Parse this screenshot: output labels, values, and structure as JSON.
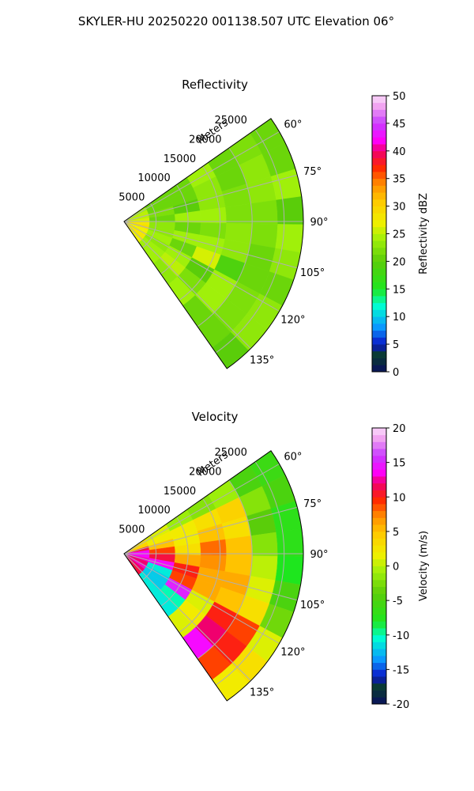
{
  "figure": {
    "suptitle": "SKYLER-HU  20250220  001138.507 UTC Elevation 06°"
  },
  "chart_data": [
    {
      "type": "heatmap",
      "projection": "polar-sector",
      "title": "Reflectivity",
      "range_axis_label": "Meters",
      "range_ticks": [
        "5000",
        "10000",
        "15000",
        "20000",
        "25000"
      ],
      "range_max": 28000,
      "azimuth_range": [
        55,
        145
      ],
      "azimuth_ticks": [
        "60°",
        "75°",
        "90°",
        "105°",
        "120°",
        "135°"
      ],
      "grid": true,
      "colorbar": {
        "label": "Reflectivity dBZ",
        "range": [
          0,
          50
        ],
        "ticks": [
          "0",
          "5",
          "10",
          "15",
          "20",
          "25",
          "30",
          "35",
          "40",
          "45",
          "50"
        ],
        "stops": [
          [
            0,
            "#0a1060"
          ],
          [
            0.06,
            "#0a3c2c"
          ],
          [
            0.1,
            "#0a14c8"
          ],
          [
            0.16,
            "#0a96ff"
          ],
          [
            0.24,
            "#00ffd2"
          ],
          [
            0.3,
            "#1ee61e"
          ],
          [
            0.4,
            "#5acd0a"
          ],
          [
            0.48,
            "#a0f00a"
          ],
          [
            0.54,
            "#f0f000"
          ],
          [
            0.62,
            "#ffc800"
          ],
          [
            0.68,
            "#ff8c00"
          ],
          [
            0.74,
            "#ff2800"
          ],
          [
            0.8,
            "#f0006e"
          ],
          [
            0.84,
            "#ff00ff"
          ],
          [
            0.9,
            "#c83cff"
          ],
          [
            0.96,
            "#f0a0f0"
          ],
          [
            1,
            "#fadcfa"
          ]
        ]
      },
      "values_dbz": [
        [
          24,
          25,
          25,
          26,
          28,
          29,
          27,
          28,
          28,
          27
        ],
        [
          21,
          21,
          22,
          21,
          23,
          23,
          24,
          23,
          24,
          24
        ],
        [
          21,
          21,
          20,
          24,
          21,
          24,
          21,
          24,
          25,
          23
        ],
        [
          24,
          23,
          23,
          24,
          22,
          24,
          26,
          20,
          22,
          24
        ],
        [
          21,
          21,
          22,
          22,
          23,
          23,
          19,
          24,
          24,
          21
        ],
        [
          22,
          23,
          23,
          22,
          22,
          21,
          21,
          22,
          22,
          21
        ],
        [
          21,
          21,
          24,
          20,
          24,
          23,
          21,
          23,
          23,
          20
        ]
      ]
    },
    {
      "type": "heatmap",
      "projection": "polar-sector",
      "title": "Velocity",
      "range_axis_label": "Meters",
      "range_ticks": [
        "5000",
        "10000",
        "15000",
        "20000",
        "25000"
      ],
      "range_max": 28000,
      "azimuth_range": [
        55,
        145
      ],
      "azimuth_ticks": [
        "60°",
        "75°",
        "90°",
        "105°",
        "120°",
        "135°"
      ],
      "grid": true,
      "colorbar": {
        "label": "Velocity (m/s)",
        "range": [
          -20,
          20
        ],
        "ticks": [
          "-20",
          "-15",
          "-10",
          "-5",
          "0",
          "5",
          "10",
          "15",
          "20"
        ],
        "stops": [
          [
            0,
            "#0a1060"
          ],
          [
            0.06,
            "#0a3c2c"
          ],
          [
            0.1,
            "#0a14c8"
          ],
          [
            0.16,
            "#0a96ff"
          ],
          [
            0.24,
            "#00ffd2"
          ],
          [
            0.3,
            "#1ee61e"
          ],
          [
            0.4,
            "#5acd0a"
          ],
          [
            0.48,
            "#a0f00a"
          ],
          [
            0.54,
            "#f0f000"
          ],
          [
            0.62,
            "#ffc800"
          ],
          [
            0.68,
            "#ff8c00"
          ],
          [
            0.74,
            "#ff2800"
          ],
          [
            0.8,
            "#f0006e"
          ],
          [
            0.84,
            "#ff00ff"
          ],
          [
            0.9,
            "#c83cff"
          ],
          [
            0.96,
            "#f0a0f0"
          ],
          [
            1,
            "#fadcfa"
          ]
        ]
      },
      "values_ms": [
        [
          3,
          4,
          11,
          14,
          14,
          13,
          12,
          13,
          12,
          11
        ],
        [
          1,
          2,
          5,
          9,
          11,
          14,
          -11,
          -12,
          -12,
          -11
        ],
        [
          -1,
          2,
          2,
          3,
          6,
          10,
          9,
          15,
          -10,
          -11
        ],
        [
          -2,
          3,
          5,
          8,
          7,
          6,
          6,
          1,
          2,
          1
        ],
        [
          -1,
          4,
          3,
          5,
          5,
          6,
          5,
          10,
          12,
          14
        ],
        [
          -5,
          -2,
          -4,
          -2,
          0,
          1,
          3,
          9,
          10,
          9
        ],
        [
          -6,
          -5,
          -7,
          -7,
          -8,
          -5,
          -3,
          1,
          3,
          2
        ]
      ]
    }
  ]
}
